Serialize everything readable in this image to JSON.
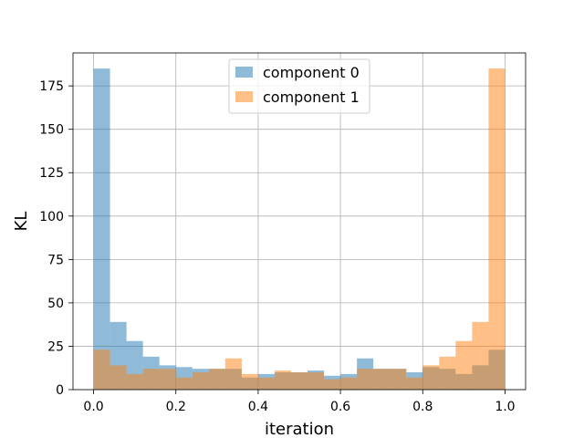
{
  "chart_data": {
    "type": "bar",
    "title": "",
    "xlabel": "iteration",
    "ylabel": "KL",
    "xlim": [
      -0.05,
      1.05
    ],
    "ylim": [
      0,
      194
    ],
    "grid": true,
    "legend_position": "top-center",
    "bin_edges": [
      0.0,
      0.04,
      0.08,
      0.12,
      0.16,
      0.2,
      0.24,
      0.28,
      0.32,
      0.36,
      0.4,
      0.44,
      0.48,
      0.52,
      0.56,
      0.6,
      0.64,
      0.68,
      0.72,
      0.76,
      0.8,
      0.84,
      0.88,
      0.92,
      0.96,
      1.0
    ],
    "x_ticks": [
      0.0,
      0.2,
      0.4,
      0.6,
      0.8,
      1.0
    ],
    "x_tick_labels": [
      "0.0",
      "0.2",
      "0.4",
      "0.6",
      "0.8",
      "1.0"
    ],
    "y_ticks": [
      0,
      25,
      50,
      75,
      100,
      125,
      150,
      175
    ],
    "y_tick_labels": [
      "0",
      "25",
      "50",
      "75",
      "100",
      "125",
      "150",
      "175"
    ],
    "series": [
      {
        "name": "component 0",
        "color": "#1f77b4",
        "values": [
          185,
          39,
          28,
          19,
          14,
          13,
          12,
          12,
          12,
          7,
          9,
          10,
          10,
          11,
          8,
          9,
          18,
          12,
          12,
          10,
          13,
          12,
          9,
          14,
          23
        ]
      },
      {
        "name": "component 1",
        "color": "#ff7f0e",
        "values": [
          23,
          14,
          9,
          12,
          12,
          7,
          10,
          12,
          18,
          9,
          7,
          11,
          10,
          10,
          6,
          7,
          12,
          12,
          12,
          7,
          14,
          19,
          28,
          39,
          185
        ]
      }
    ]
  }
}
